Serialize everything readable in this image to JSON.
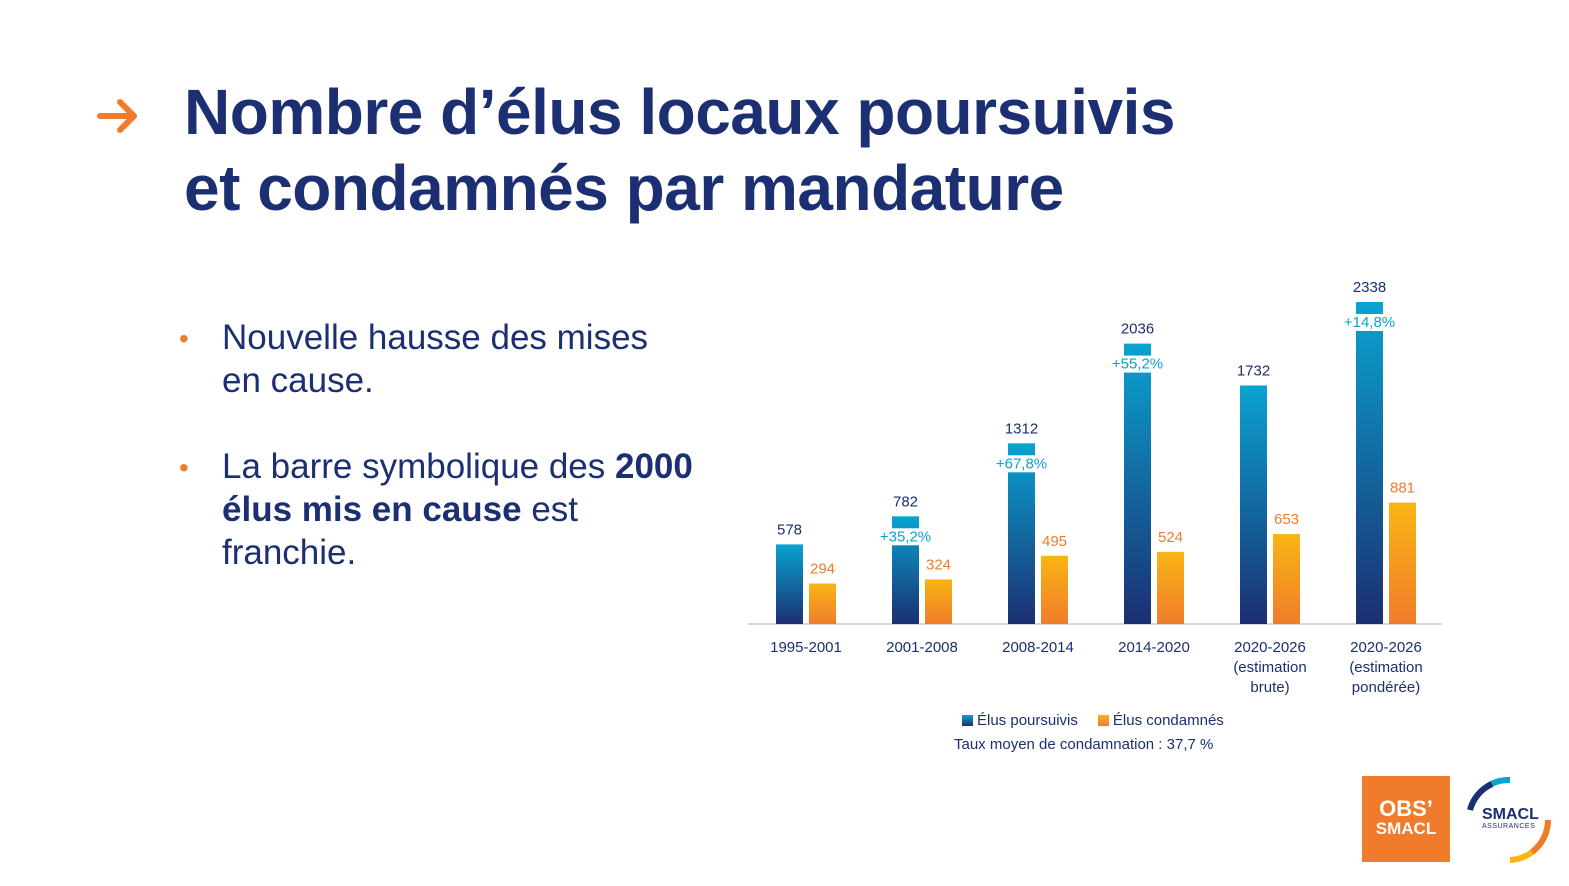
{
  "header": {
    "title_line1": "Nombre d’élus locaux poursuivis",
    "title_line2": "et condamnés par mandature",
    "arrow_icon": "arrow-right-icon",
    "arrow_color": "#f07c2b"
  },
  "bullets": [
    {
      "text": "Nouvelle hausse des mises en cause."
    },
    {
      "pre": "La barre symbolique des ",
      "bold": "2000 élus mis en cause",
      "post": " est franchie."
    }
  ],
  "chart_data": {
    "type": "bar",
    "categories": [
      [
        "1995-2001"
      ],
      [
        "2001-2008"
      ],
      [
        "2008-2014"
      ],
      [
        "2014-2020"
      ],
      [
        "2020-2026",
        "(estimation",
        "brute)"
      ],
      [
        "2020-2026",
        "(estimation",
        "pondérée)"
      ]
    ],
    "series": [
      {
        "name": "Élus poursuivis",
        "values": [
          578,
          782,
          1312,
          2036,
          1732,
          2338
        ],
        "color_top": "#0aa3d0",
        "color_bottom": "#1b2f72"
      },
      {
        "name": "Élus condamnés",
        "values": [
          294,
          324,
          495,
          524,
          653,
          881
        ],
        "color_top": "#f8b514",
        "color_bottom": "#f07c2b"
      }
    ],
    "growth_labels": [
      "",
      "+35,2%",
      "+67,8%",
      "+55,2%",
      "",
      "+14,8%"
    ],
    "growth_color": "#0aa3d0",
    "ylim": [
      0,
      2338
    ],
    "grid": false,
    "legend_position": "bottom",
    "note": "Taux moyen de condamnation : 37,7 %"
  },
  "logos": {
    "obs_line1": "OBS’",
    "obs_line2": "SMACL",
    "smacl_name": "SMACL",
    "smacl_sub": "ASSURANCES"
  }
}
